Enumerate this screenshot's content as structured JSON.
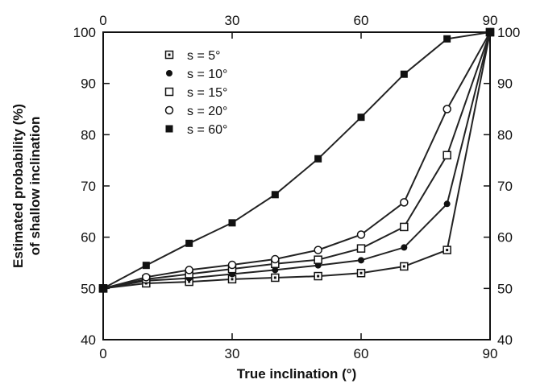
{
  "chart_data": {
    "type": "line",
    "xlabel": "True inclination (°)",
    "ylabel_line1": "Estimated probability (%)",
    "ylabel_line2": "of shallow inclination",
    "xlim": [
      0,
      90
    ],
    "ylim": [
      40,
      100
    ],
    "xticks": [
      0,
      30,
      60,
      90
    ],
    "yticks": [
      40,
      50,
      60,
      70,
      80,
      90,
      100
    ],
    "mirror_axes": true,
    "grid": false,
    "legend_position": "upper-left",
    "series": [
      {
        "name": "s = 5°",
        "marker": "dotted-square",
        "color": "#222222",
        "x": [
          0,
          10,
          20,
          30,
          40,
          50,
          60,
          70,
          80,
          90
        ],
        "y": [
          50,
          51,
          51.3,
          51.8,
          52.1,
          52.4,
          53,
          54.3,
          57.5,
          100
        ]
      },
      {
        "name": "s = 10°",
        "marker": "filled-circle",
        "color": "#222222",
        "x": [
          0,
          10,
          20,
          30,
          40,
          50,
          60,
          70,
          80,
          90
        ],
        "y": [
          50,
          51.5,
          52,
          52.8,
          53.6,
          54.5,
          55.5,
          58,
          66.5,
          100
        ]
      },
      {
        "name": "s = 15°",
        "marker": "open-square",
        "color": "#222222",
        "x": [
          0,
          10,
          20,
          30,
          40,
          50,
          60,
          70,
          80,
          90
        ],
        "y": [
          50,
          51.8,
          52.8,
          53.8,
          54.8,
          55.6,
          57.8,
          62,
          76,
          100
        ]
      },
      {
        "name": "s = 20°",
        "marker": "open-circle",
        "color": "#222222",
        "x": [
          0,
          10,
          20,
          30,
          40,
          50,
          60,
          70,
          80,
          90
        ],
        "y": [
          50,
          52.2,
          53.6,
          54.6,
          55.7,
          57.5,
          60.5,
          66.8,
          85,
          100
        ]
      },
      {
        "name": "s = 60°",
        "marker": "filled-square",
        "color": "#222222",
        "x": [
          0,
          10,
          20,
          30,
          40,
          50,
          60,
          70,
          80,
          90
        ],
        "y": [
          50,
          54.5,
          58.8,
          62.8,
          68.3,
          75.3,
          83.4,
          91.8,
          98.7,
          100
        ]
      }
    ]
  }
}
